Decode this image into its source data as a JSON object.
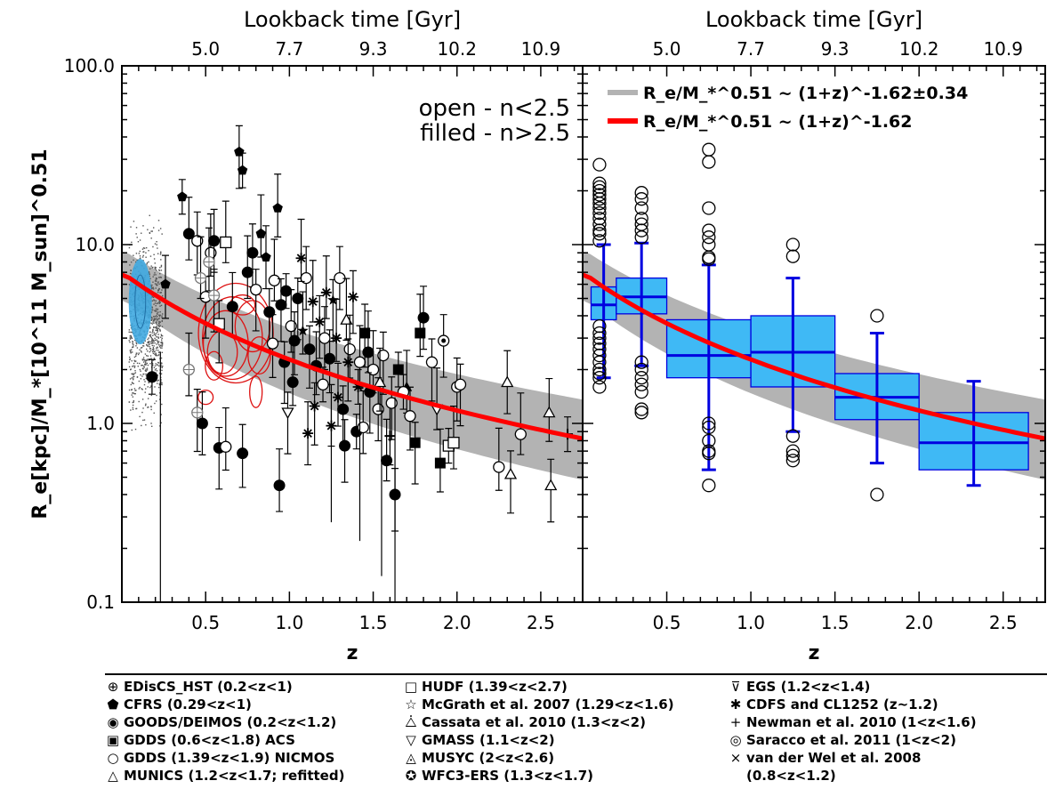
{
  "chart_data": [
    {
      "panel": "left",
      "type": "scatter",
      "xlabel": "z",
      "ylabel": "R_e[kpc]/M_*[10^11 M_sun]^0.51",
      "top_axis_label": "Lookback time [Gyr]",
      "top_tick_labels": [
        "5.0",
        "7.7",
        "9.3",
        "10.2",
        "10.9"
      ],
      "top_tick_z": [
        0.5,
        1.0,
        1.5,
        2.0,
        2.5
      ],
      "xlim": [
        0.0,
        2.75
      ],
      "ylim": [
        0.1,
        100.0
      ],
      "yscale": "log",
      "x_tick_labels": [
        "0.5",
        "1.0",
        "1.5",
        "2.0",
        "2.5"
      ],
      "y_tick_labels": [
        "0.1",
        "1.0",
        "10.0",
        "100.0"
      ],
      "annotation_open": "open  -  n<2.5",
      "annotation_filled": "filled  -  n>2.5",
      "fit_curve": {
        "norm_at_z0": 7.0,
        "exponent": -1.62,
        "color": "#ff0000"
      },
      "band": {
        "exponent_err": 0.34,
        "color": "#b3b3b3"
      },
      "points": [
        {
          "x": 0.36,
          "y": 18.5,
          "m": "pent"
        },
        {
          "x": 0.4,
          "y": 11.5,
          "m": "fcircle"
        },
        {
          "x": 0.45,
          "y": 10.5,
          "m": "circ"
        },
        {
          "x": 0.5,
          "y": 5.1,
          "m": "circ"
        },
        {
          "x": 0.53,
          "y": 9.0,
          "m": "circ"
        },
        {
          "x": 0.55,
          "y": 10.5,
          "m": "fcircle"
        },
        {
          "x": 0.58,
          "y": 3.6,
          "m": "sq"
        },
        {
          "x": 0.62,
          "y": 10.3,
          "m": "sq"
        },
        {
          "x": 0.66,
          "y": 4.5,
          "m": "fcircle"
        },
        {
          "x": 0.7,
          "y": 33.0,
          "m": "pent"
        },
        {
          "x": 0.72,
          "y": 26.0,
          "m": "pent"
        },
        {
          "x": 0.75,
          "y": 7.0,
          "m": "fcircle"
        },
        {
          "x": 0.78,
          "y": 9.0,
          "m": "fcircle"
        },
        {
          "x": 0.8,
          "y": 5.6,
          "m": "circ"
        },
        {
          "x": 0.83,
          "y": 11.5,
          "m": "pent"
        },
        {
          "x": 0.86,
          "y": 8.5,
          "m": "pent"
        },
        {
          "x": 0.88,
          "y": 4.2,
          "m": "fcircle"
        },
        {
          "x": 0.91,
          "y": 6.3,
          "m": "circ"
        },
        {
          "x": 0.93,
          "y": 16.0,
          "m": "pent"
        },
        {
          "x": 0.95,
          "y": 4.6,
          "m": "fcircle"
        },
        {
          "x": 0.98,
          "y": 5.5,
          "m": "fcircle"
        },
        {
          "x": 1.01,
          "y": 3.5,
          "m": "circ"
        },
        {
          "x": 1.03,
          "y": 2.9,
          "m": "fcircle"
        },
        {
          "x": 1.05,
          "y": 5.0,
          "m": "fcircle"
        },
        {
          "x": 1.08,
          "y": 3.3,
          "m": "star"
        },
        {
          "x": 1.1,
          "y": 6.5,
          "m": "circ"
        },
        {
          "x": 1.12,
          "y": 2.6,
          "m": "fcircle"
        },
        {
          "x": 1.14,
          "y": 4.8,
          "m": "ast"
        },
        {
          "x": 1.16,
          "y": 2.1,
          "m": "fcircle"
        },
        {
          "x": 1.18,
          "y": 3.7,
          "m": "ast"
        },
        {
          "x": 1.2,
          "y": 1.65,
          "m": "circ"
        },
        {
          "x": 1.22,
          "y": 5.4,
          "m": "ast"
        },
        {
          "x": 1.24,
          "y": 2.3,
          "m": "fcircle"
        },
        {
          "x": 1.26,
          "y": 4.9,
          "m": "star"
        },
        {
          "x": 1.28,
          "y": 3.0,
          "m": "ast"
        },
        {
          "x": 1.3,
          "y": 6.5,
          "m": "circ"
        },
        {
          "x": 1.32,
          "y": 1.2,
          "m": "fcircle"
        },
        {
          "x": 1.34,
          "y": 3.8,
          "m": "tri"
        },
        {
          "x": 1.36,
          "y": 2.6,
          "m": "circ"
        },
        {
          "x": 1.38,
          "y": 5.1,
          "m": "ast"
        },
        {
          "x": 1.4,
          "y": 0.9,
          "m": "fcircle"
        },
        {
          "x": 1.42,
          "y": 2.2,
          "m": "circ"
        },
        {
          "x": 1.45,
          "y": 3.2,
          "m": "fsq"
        },
        {
          "x": 1.48,
          "y": 1.5,
          "m": "fcircle"
        },
        {
          "x": 1.5,
          "y": 2.0,
          "m": "circ"
        },
        {
          "x": 1.53,
          "y": 1.2,
          "m": "circ"
        },
        {
          "x": 1.56,
          "y": 2.4,
          "m": "circ"
        },
        {
          "x": 1.58,
          "y": 0.62,
          "m": "fcircle"
        },
        {
          "x": 1.6,
          "y": 0.85,
          "m": "plus"
        },
        {
          "x": 1.63,
          "y": 0.4,
          "m": "fcircle"
        },
        {
          "x": 1.65,
          "y": 2.0,
          "m": "fsq"
        },
        {
          "x": 1.7,
          "y": 1.6,
          "m": "ftri"
        },
        {
          "x": 1.72,
          "y": 1.1,
          "m": "circ"
        },
        {
          "x": 1.75,
          "y": 0.78,
          "m": "fsq"
        },
        {
          "x": 1.78,
          "y": 3.2,
          "m": "fsq"
        },
        {
          "x": 1.8,
          "y": 3.9,
          "m": "fcircle"
        },
        {
          "x": 1.85,
          "y": 2.2,
          "m": "circ"
        },
        {
          "x": 1.88,
          "y": 1.2,
          "m": "dtri"
        },
        {
          "x": 1.9,
          "y": 0.6,
          "m": "fsq"
        },
        {
          "x": 1.92,
          "y": 2.9,
          "m": "dotc"
        },
        {
          "x": 1.95,
          "y": 0.75,
          "m": "sq"
        },
        {
          "x": 1.98,
          "y": 0.78,
          "m": "sq"
        },
        {
          "x": 2.0,
          "y": 1.6,
          "m": "dotc"
        },
        {
          "x": 2.02,
          "y": 1.65,
          "m": "circ"
        },
        {
          "x": 2.25,
          "y": 0.57,
          "m": "circ"
        },
        {
          "x": 2.3,
          "y": 1.7,
          "m": "tri"
        },
        {
          "x": 2.32,
          "y": 0.52,
          "m": "tri"
        },
        {
          "x": 2.38,
          "y": 0.87,
          "m": "circ"
        },
        {
          "x": 2.55,
          "y": 1.15,
          "m": "tri"
        },
        {
          "x": 2.56,
          "y": 0.45,
          "m": "tri"
        },
        {
          "x": 2.66,
          "y": 0.87,
          "m": "plus"
        },
        {
          "x": 0.94,
          "y": 0.45,
          "m": "fcircle"
        },
        {
          "x": 0.72,
          "y": 0.68,
          "m": "fcircle"
        },
        {
          "x": 0.58,
          "y": 0.73,
          "m": "fcircle"
        },
        {
          "x": 0.62,
          "y": 0.74,
          "m": "circ"
        },
        {
          "x": 0.48,
          "y": 1.0,
          "m": "fcircle"
        },
        {
          "x": 0.45,
          "y": 1.15,
          "m": "egcirc"
        },
        {
          "x": 0.47,
          "y": 6.5,
          "m": "egcirc"
        },
        {
          "x": 0.52,
          "y": 8.0,
          "m": "egcirc"
        },
        {
          "x": 0.55,
          "y": 5.2,
          "m": "egcirc"
        },
        {
          "x": 0.18,
          "y": 1.82,
          "m": "fcircle"
        },
        {
          "x": 0.4,
          "y": 2.0,
          "m": "egcirc"
        },
        {
          "x": 0.26,
          "y": 6.0,
          "m": "pent"
        },
        {
          "x": 0.99,
          "y": 1.15,
          "m": "dtri"
        },
        {
          "x": 1.07,
          "y": 8.4,
          "m": "ast"
        },
        {
          "x": 1.11,
          "y": 0.88,
          "m": "ast"
        },
        {
          "x": 1.15,
          "y": 1.25,
          "m": "ast"
        },
        {
          "x": 1.25,
          "y": 0.97,
          "m": "ast"
        },
        {
          "x": 1.29,
          "y": 1.4,
          "m": "ast"
        },
        {
          "x": 1.33,
          "y": 0.75,
          "m": "fcircle"
        },
        {
          "x": 1.41,
          "y": 1.6,
          "m": "ast"
        },
        {
          "x": 1.44,
          "y": 0.95,
          "m": "circ"
        },
        {
          "x": 0.9,
          "y": 2.8,
          "m": "circ"
        },
        {
          "x": 0.97,
          "y": 2.2,
          "m": "fcircle"
        },
        {
          "x": 1.02,
          "y": 1.7,
          "m": "fcircle"
        },
        {
          "x": 1.21,
          "y": 3.0,
          "m": "circ"
        },
        {
          "x": 1.35,
          "y": 2.2,
          "m": "ast"
        },
        {
          "x": 1.47,
          "y": 2.5,
          "m": "fcircle"
        },
        {
          "x": 1.54,
          "y": 1.7,
          "m": "tri"
        },
        {
          "x": 1.61,
          "y": 1.3,
          "m": "circ"
        },
        {
          "x": 1.68,
          "y": 1.5,
          "m": "circ"
        }
      ]
    },
    {
      "panel": "right",
      "type": "box",
      "xlabel": "z",
      "top_axis_label": "Lookback time [Gyr]",
      "top_tick_labels": [
        "5.0",
        "7.7",
        "9.3",
        "10.2",
        "10.9"
      ],
      "xlim": [
        0.0,
        2.75
      ],
      "ylim": [
        0.1,
        100.0
      ],
      "yscale": "log",
      "x_tick_labels": [
        "0.5",
        "1.0",
        "1.5",
        "2.0",
        "2.5"
      ],
      "legend": [
        {
          "label": "R_e/M_*^0.51 ~ (1+z)^-1.62±0.34",
          "color": "#b3b3b3"
        },
        {
          "label": "R_e/M_*^0.51 ~ (1+z)^-1.62",
          "color": "#ff0000"
        }
      ],
      "box_color": "#3fb9f5",
      "whisker_color": "#0000e0",
      "boxes": [
        {
          "x0": 0.05,
          "x1": 0.2,
          "q1": 3.8,
          "median": 4.6,
          "q3": 5.8,
          "lo": 1.8,
          "hi": 10.0
        },
        {
          "x0": 0.2,
          "x1": 0.5,
          "q1": 4.1,
          "median": 5.1,
          "q3": 6.5,
          "lo": 2.1,
          "hi": 10.2
        },
        {
          "x0": 0.5,
          "x1": 1.0,
          "q1": 1.8,
          "median": 2.4,
          "q3": 3.8,
          "lo": 0.55,
          "hi": 7.7
        },
        {
          "x0": 1.0,
          "x1": 1.5,
          "q1": 1.6,
          "median": 2.5,
          "q3": 4.0,
          "lo": 0.9,
          "hi": 6.5
        },
        {
          "x0": 1.5,
          "x1": 2.0,
          "q1": 1.05,
          "median": 1.4,
          "q3": 1.9,
          "lo": 0.6,
          "hi": 3.2
        },
        {
          "x0": 2.0,
          "x1": 2.65,
          "q1": 0.55,
          "median": 0.78,
          "q3": 1.15,
          "lo": 0.45,
          "hi": 1.72
        }
      ],
      "outliers": [
        {
          "x": 0.1,
          "values": [
            28,
            22,
            21,
            20,
            19,
            18,
            17,
            16,
            15,
            14,
            13,
            12,
            11.5,
            10.5,
            3.5,
            3.2,
            3.0,
            2.8,
            2.6,
            2.4,
            2.2,
            2.0,
            1.9,
            1.8,
            1.6
          ]
        },
        {
          "x": 0.35,
          "values": [
            19.5,
            18,
            16,
            14,
            13,
            12,
            11,
            2.2,
            2.0,
            1.8,
            1.65,
            1.5,
            1.2,
            1.15
          ]
        },
        {
          "x": 0.75,
          "values": [
            34,
            29,
            16,
            12,
            11,
            10,
            8.5,
            8.3,
            1.0,
            0.95,
            0.8,
            0.7,
            0.68,
            0.45
          ]
        },
        {
          "x": 1.25,
          "values": [
            10,
            8.6,
            0.85,
            0.7,
            0.66,
            0.62
          ]
        },
        {
          "x": 1.75,
          "values": [
            4.0,
            0.4
          ]
        }
      ]
    }
  ],
  "legend_entries": [
    {
      "sym": "⊕",
      "text": "EDisCS_HST (0.2<z<1)"
    },
    {
      "sym": "⬟",
      "text": "CFRS (0.29<z<1)"
    },
    {
      "sym": "◉",
      "text": "GOODS/DEIMOS (0.2<z<1.2)"
    },
    {
      "sym": "▣",
      "text": "GDDS (0.6<z<1.8) ACS"
    },
    {
      "sym": "○",
      "text": "GDDS (1.39<z<1.9) NICMOS"
    },
    {
      "sym": "△",
      "text": "MUNICS (1.2<z<1.7; refitted)"
    },
    {
      "sym": "□",
      "text": "HUDF (1.39<z<2.7)"
    },
    {
      "sym": "☆",
      "text": "McGrath et al. 2007 (1.29<z<1.6)"
    },
    {
      "sym": "⧊",
      "text": "Cassata et al. 2010 (1.3<z<2)"
    },
    {
      "sym": "▽",
      "text": "GMASS (1.1<z<2)"
    },
    {
      "sym": "◬",
      "text": "MUSYC (2<z<2.6)"
    },
    {
      "sym": "✪",
      "text": "WFC3-ERS (1.3<z<1.7)"
    },
    {
      "sym": "⊽",
      "text": "EGS (1.2<z<1.4)"
    },
    {
      "sym": "✱",
      "text": "CDFS and CL1252 (z~1.2)"
    },
    {
      "sym": "+",
      "text": "Newman et al. 2010 (1<z<1.6)"
    },
    {
      "sym": "◎",
      "text": "Saracco et al. 2011 (1<z<2)"
    },
    {
      "sym": "×",
      "text": "van der Wel et al. 2008"
    },
    {
      "sym": "",
      "text": "(0.8<z<1.2)"
    }
  ]
}
